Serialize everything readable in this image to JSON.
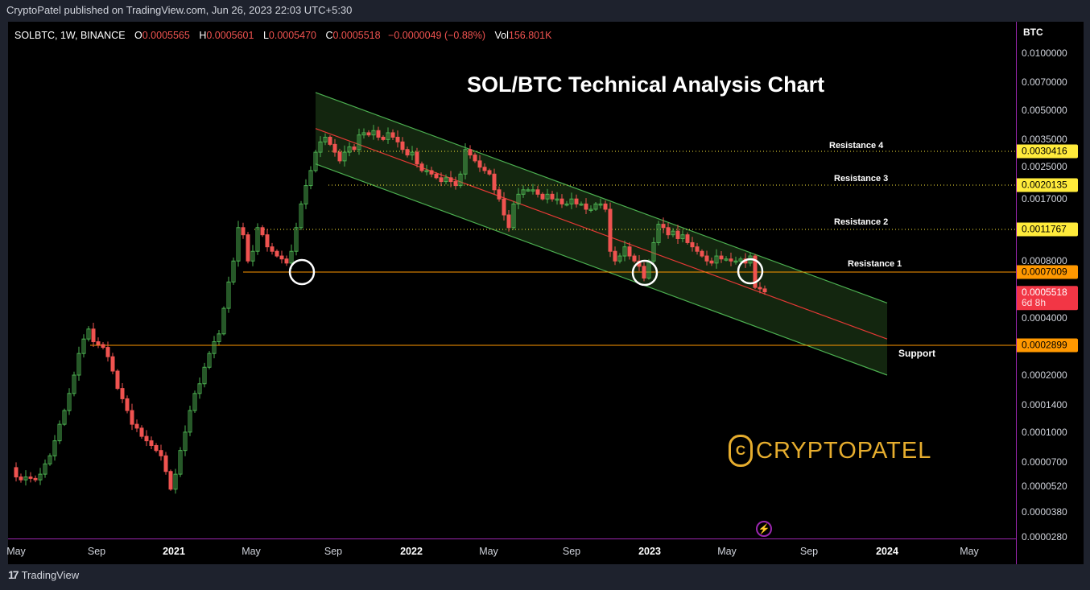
{
  "published": "CryptoPatel published on TradingView.com, Jun 26, 2023 22:03 UTC+5:30",
  "legend": {
    "symbol": "SOLBTC, 1W, BINANCE",
    "o_label": "O",
    "o": "0.0005565",
    "h_label": "H",
    "h": "0.0005601",
    "l_label": "L",
    "l": "0.0005470",
    "c_label": "C",
    "c": "0.0005518",
    "change": "−0.0000049 (−0.88%)",
    "vol_label": "Vol",
    "vol": "156.801K"
  },
  "footer": {
    "logo": "17",
    "brand": "TradingView"
  },
  "watermark": {
    "logo": "C",
    "text": "CRYPTOPATEL"
  },
  "colors": {
    "up": "#4caf50",
    "down": "#ef5350",
    "channel_fill": "#13260f",
    "channel_line": "#4caf50",
    "mid_line": "#e53935",
    "orange": "#ff9800",
    "yellow": "#ffeb3b",
    "axis": "#9c27b0"
  },
  "chart_data": {
    "type": "candlestick",
    "title": "SOL/BTC Technical Analysis Chart",
    "symbol": "SOLBTC",
    "interval": "1W",
    "exchange": "BINANCE",
    "ylabel": "BTC",
    "yscale": "log",
    "ylim": [
      2.8e-05,
      0.01
    ],
    "y_ticks": [
      "0.0100000",
      "0.0070000",
      "0.0050000",
      "0.0035000",
      "0.0025000",
      "0.0017000",
      "0.0008000",
      "0.0004000",
      "0.0002000",
      "0.0001400",
      "0.0001000",
      "0.0000700",
      "0.0000520",
      "0.0000380",
      "0.0000280"
    ],
    "x_ticks": [
      {
        "label": "May",
        "x": 10,
        "year": false
      },
      {
        "label": "Sep",
        "x": 110,
        "year": false
      },
      {
        "label": "2021",
        "x": 206,
        "year": true
      },
      {
        "label": "May",
        "x": 302,
        "year": false
      },
      {
        "label": "Sep",
        "x": 404,
        "year": false
      },
      {
        "label": "2022",
        "x": 501,
        "year": true
      },
      {
        "label": "May",
        "x": 597,
        "year": false
      },
      {
        "label": "Sep",
        "x": 700,
        "year": false
      },
      {
        "label": "2023",
        "x": 797,
        "year": true
      },
      {
        "label": "May",
        "x": 893,
        "year": false
      },
      {
        "label": "Sep",
        "x": 995,
        "year": false
      },
      {
        "label": "2024",
        "x": 1092,
        "year": true
      },
      {
        "label": "May",
        "x": 1194,
        "year": false
      }
    ],
    "levels": [
      {
        "name": "Resistance 4",
        "price": "0.0030416",
        "style": "dotted",
        "color": "yellow"
      },
      {
        "name": "Resistance 3",
        "price": "0.0020135",
        "style": "dotted",
        "color": "yellow"
      },
      {
        "name": "Resistance 2",
        "price": "0.0011767",
        "style": "dotted",
        "color": "yellow"
      },
      {
        "name": "Resistance 1",
        "price": "0.0007009",
        "style": "solid",
        "color": "orange"
      },
      {
        "name": "Support",
        "price": "0.0002899",
        "style": "solid",
        "color": "orange"
      }
    ],
    "last_price": "0.0005518",
    "countdown": "6d 8h",
    "channel": {
      "type": "descending parallel channel",
      "start": "Aug 2021",
      "end": "Jan 2024",
      "upper_start": 0.0062,
      "upper_end": 0.00048,
      "mid_start": 0.004,
      "mid_end": 0.00031,
      "lower_start": 0.0026,
      "lower_end": 0.0002
    },
    "annotations": [
      "circle at Jul 2021 retest of 0.0007009",
      "circle at Dec 2022 test of 0.0007009",
      "circle at Jun 2023 breakdown of 0.0007009"
    ]
  }
}
